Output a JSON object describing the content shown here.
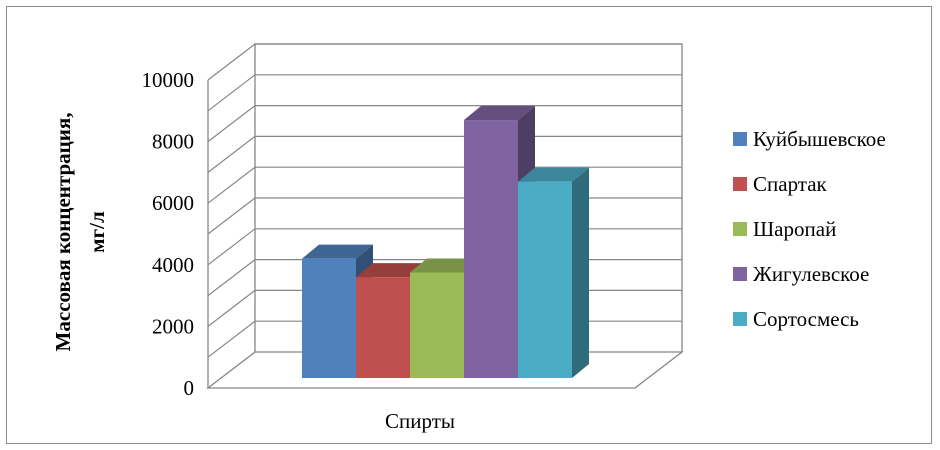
{
  "chart_data": {
    "type": "bar",
    "style": "3d-clustered-column",
    "categories": [
      "Спирты"
    ],
    "series": [
      {
        "name": "Куйбышевское",
        "values": [
          4200
        ],
        "color": "#4f81bd"
      },
      {
        "name": "Спартак",
        "values": [
          3600
        ],
        "color": "#c0504d"
      },
      {
        "name": "Шаропай",
        "values": [
          3750
        ],
        "color": "#9bbb59"
      },
      {
        "name": "Жигулевское",
        "values": [
          8700
        ],
        "color": "#8064a2"
      },
      {
        "name": "Сортосмесь",
        "values": [
          6700
        ],
        "color": "#4bacc6"
      }
    ],
    "ylabel_lines": [
      "Массовая концентрация,",
      "мг/л"
    ],
    "ylim": [
      0,
      10000
    ],
    "yticks": [
      0,
      2000,
      4000,
      6000,
      8000,
      10000
    ],
    "grid": true,
    "legend_position": "right"
  }
}
